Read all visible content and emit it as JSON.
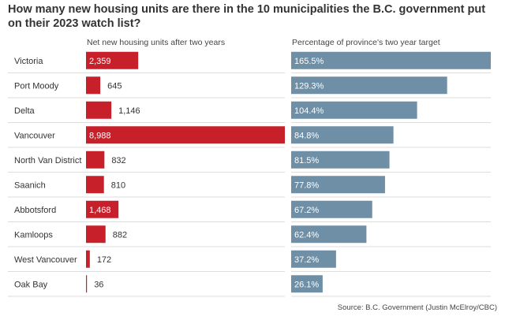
{
  "title": "How many new housing units are there in the 10 municipalities the B.C. government put on their 2023 watch list?",
  "source": "Source: B.C. Government (Justin McElroy/CBC)",
  "colors": {
    "units_bar": "#c8202a",
    "pct_bar": "#6e8fa5",
    "divider": "#dddddd",
    "text": "#333333",
    "label_inside": "#ffffff"
  },
  "chart_data": {
    "type": "bar",
    "orientation": "horizontal",
    "categories": [
      "Victoria",
      "Port Moody",
      "Delta",
      "Vancouver",
      "North Van District",
      "Saanich",
      "Abbotsford",
      "Kamloops",
      "West Vancouver",
      "Oak Bay"
    ],
    "series": [
      {
        "name": "Net new housing units after two years",
        "values": [
          2359,
          645,
          1146,
          8988,
          832,
          810,
          1468,
          882,
          172,
          36
        ],
        "labels": [
          "2,359",
          "645",
          "1,146",
          "8,988",
          "832",
          "810",
          "1,468",
          "882",
          "172",
          "36"
        ],
        "xlim": [
          0,
          8988
        ]
      },
      {
        "name": "Percentage of province's two year target",
        "values": [
          165.5,
          129.3,
          104.4,
          84.8,
          81.5,
          77.8,
          67.2,
          62.4,
          37.2,
          26.1
        ],
        "labels": [
          "165.5%",
          "129.3%",
          "104.4%",
          "84.8%",
          "81.5%",
          "77.8%",
          "67.2%",
          "62.4%",
          "37.2%",
          "26.1%"
        ],
        "xlim": [
          0,
          165.5
        ]
      }
    ],
    "title": "How many new housing units are there in the 10 municipalities the B.C. government put on their 2023 watch list?",
    "xlabel": "",
    "ylabel": "",
    "legend": "none",
    "grid": false
  }
}
